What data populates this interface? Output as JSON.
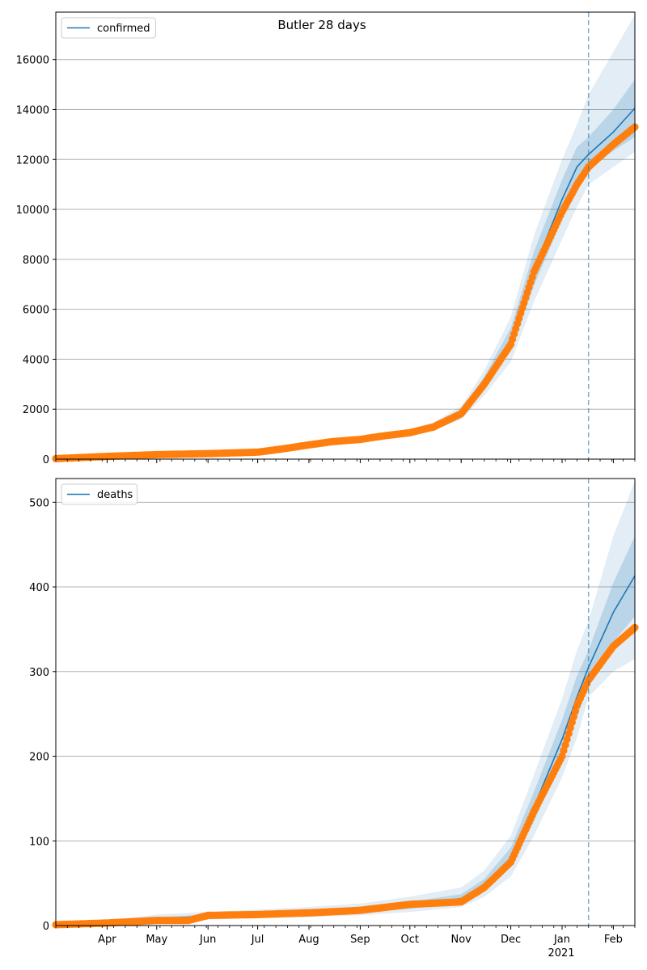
{
  "figure": {
    "title": "Butler 28 days",
    "year_label": "2021"
  },
  "colors": {
    "model_line": "#1f77b4",
    "band": "#1f77b4",
    "observed": "#ff7f0e",
    "forecast_divider": "#1f77b4",
    "grid": "#b0b0b0"
  },
  "chart_data": [
    {
      "type": "line",
      "series": [
        {
          "name": "confirmed",
          "x": [
            "2020-03-01",
            "2020-04-01",
            "2020-05-01",
            "2020-06-01",
            "2020-07-01",
            "2020-07-15",
            "2020-08-01",
            "2020-08-15",
            "2020-09-01",
            "2020-09-15",
            "2020-10-01",
            "2020-10-15",
            "2020-11-01",
            "2020-11-15",
            "2020-12-01",
            "2020-12-15",
            "2021-01-01",
            "2021-01-10",
            "2021-01-17",
            "2021-02-01",
            "2021-02-14"
          ],
          "y": [
            0,
            120,
            190,
            230,
            280,
            420,
            560,
            680,
            780,
            930,
            1080,
            1300,
            1850,
            3050,
            4800,
            7600,
            10400,
            11700,
            12200,
            13100,
            14050
          ],
          "band_inner_lower": [
            0,
            110,
            175,
            215,
            260,
            390,
            520,
            640,
            740,
            880,
            1020,
            1220,
            1720,
            2800,
            4350,
            6950,
            9600,
            10900,
            11600,
            12350,
            12900
          ],
          "band_inner_upper": [
            0,
            130,
            205,
            245,
            300,
            450,
            600,
            720,
            820,
            980,
            1140,
            1380,
            1980,
            3300,
            5250,
            8300,
            11200,
            12500,
            12900,
            14000,
            15200
          ],
          "band_outer_lower": [
            0,
            100,
            160,
            200,
            240,
            360,
            480,
            600,
            700,
            830,
            960,
            1140,
            1590,
            2550,
            3900,
            6300,
            8800,
            10100,
            11000,
            11700,
            12300
          ],
          "band_outer_upper": [
            0,
            140,
            220,
            260,
            320,
            480,
            640,
            760,
            860,
            1030,
            1200,
            1460,
            2110,
            3550,
            5700,
            8950,
            12000,
            13400,
            14600,
            16300,
            17800
          ]
        },
        {
          "name": "",
          "role": "observed",
          "x": [
            "2020-03-01",
            "2020-04-01",
            "2020-05-01",
            "2020-06-01",
            "2020-07-01",
            "2020-07-15",
            "2020-08-01",
            "2020-08-15",
            "2020-09-01",
            "2020-09-15",
            "2020-10-01",
            "2020-10-15",
            "2020-11-01",
            "2020-11-15",
            "2020-12-01",
            "2020-12-15",
            "2021-01-01",
            "2021-01-10",
            "2021-01-17",
            "2021-02-01",
            "2021-02-14"
          ],
          "y": [
            20,
            110,
            180,
            220,
            280,
            400,
            570,
            700,
            790,
            930,
            1060,
            1280,
            1820,
            3000,
            4600,
            7500,
            9900,
            11000,
            11700,
            12600,
            13300
          ]
        }
      ],
      "xlim": [
        "2020-03-01",
        "2021-02-14"
      ],
      "ylim": [
        0,
        17900
      ],
      "yticks": [
        0,
        2000,
        4000,
        6000,
        8000,
        10000,
        12000,
        14000,
        16000
      ],
      "forecast_start": "2021-01-17",
      "grid": "y",
      "legend": "top-left"
    },
    {
      "type": "line",
      "series": [
        {
          "name": "deaths",
          "x": [
            "2020-03-01",
            "2020-04-01",
            "2020-05-01",
            "2020-06-01",
            "2020-07-01",
            "2020-08-01",
            "2020-09-01",
            "2020-10-01",
            "2020-11-01",
            "2020-11-15",
            "2020-12-01",
            "2020-12-15",
            "2021-01-01",
            "2021-01-10",
            "2021-01-17",
            "2021-02-01",
            "2021-02-14"
          ],
          "y": [
            0,
            3,
            8,
            11,
            13,
            15,
            18,
            24,
            32,
            48,
            80,
            140,
            220,
            270,
            305,
            370,
            413
          ],
          "band_inner_lower": [
            0,
            2,
            6,
            9,
            11,
            13,
            15,
            20,
            27,
            41,
            69,
            123,
            197,
            245,
            285,
            335,
            365
          ],
          "band_inner_upper": [
            0,
            4,
            10,
            13,
            15,
            18,
            21,
            28,
            37,
            55,
            92,
            158,
            243,
            295,
            325,
            405,
            460
          ],
          "band_outer_lower": [
            0,
            1,
            4,
            7,
            9,
            10,
            12,
            16,
            22,
            34,
            58,
            106,
            175,
            222,
            270,
            300,
            315
          ],
          "band_outer_upper": [
            0,
            6,
            13,
            16,
            19,
            22,
            26,
            34,
            45,
            65,
            106,
            178,
            268,
            325,
            360,
            460,
            525
          ]
        },
        {
          "name": "",
          "role": "observed",
          "x": [
            "2020-03-01",
            "2020-04-01",
            "2020-05-01",
            "2020-05-20",
            "2020-06-01",
            "2020-07-01",
            "2020-08-01",
            "2020-09-01",
            "2020-10-01",
            "2020-11-01",
            "2020-11-15",
            "2020-12-01",
            "2020-12-15",
            "2021-01-01",
            "2021-01-10",
            "2021-01-17",
            "2021-02-01",
            "2021-02-14"
          ],
          "y": [
            1,
            3,
            6,
            6,
            12,
            13,
            15,
            18,
            25,
            28,
            45,
            75,
            135,
            200,
            260,
            290,
            330,
            352
          ]
        }
      ],
      "xlim": [
        "2020-03-01",
        "2021-02-14"
      ],
      "ylim": [
        0,
        528
      ],
      "yticks": [
        0,
        100,
        200,
        300,
        400,
        500
      ],
      "xticks": [
        {
          "date": "2020-04-01",
          "label": "Apr"
        },
        {
          "date": "2020-05-01",
          "label": "May"
        },
        {
          "date": "2020-06-01",
          "label": "Jun"
        },
        {
          "date": "2020-07-01",
          "label": "Jul"
        },
        {
          "date": "2020-08-01",
          "label": "Aug"
        },
        {
          "date": "2020-09-01",
          "label": "Sep"
        },
        {
          "date": "2020-10-01",
          "label": "Oct"
        },
        {
          "date": "2020-11-01",
          "label": "Nov"
        },
        {
          "date": "2020-12-01",
          "label": "Dec"
        },
        {
          "date": "2021-01-01",
          "label": "Jan"
        },
        {
          "date": "2021-02-01",
          "label": "Feb"
        }
      ],
      "forecast_start": "2021-01-17",
      "grid": "y",
      "legend": "top-left"
    }
  ]
}
